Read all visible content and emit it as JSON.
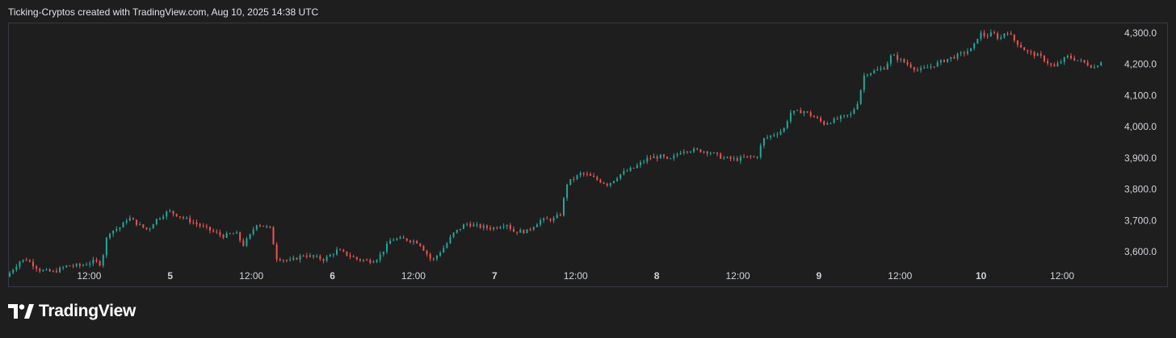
{
  "header": {
    "caption": "Ticking-Cryptos created with TradingView.com, Aug 10, 2025 14:38 UTC"
  },
  "brand": {
    "name": "TradingView"
  },
  "colors": {
    "up": "#26a69a",
    "down": "#ef5350",
    "background": "#1e1e1e",
    "border": "#363a45",
    "text": "#d1d4dc"
  },
  "chart_data": {
    "type": "candlestick",
    "price_axis": {
      "position": "right",
      "ylim": [
        3500,
        4330
      ],
      "ticks": [
        3600,
        3700,
        3800,
        3900,
        4000,
        4100,
        4200,
        4300
      ],
      "tick_labels": [
        "3,600.0",
        "3,700.0",
        "3,800.0",
        "3,900.0",
        "4,000.0",
        "4,100.0",
        "4,200.0",
        "4,300.0"
      ]
    },
    "time_axis": {
      "range_hours": [
        0,
        164
      ],
      "ticks": [
        {
          "hour": 12,
          "label": "12:00",
          "bold": false
        },
        {
          "hour": 24,
          "label": "5",
          "bold": true
        },
        {
          "hour": 36,
          "label": "12:00",
          "bold": false
        },
        {
          "hour": 48,
          "label": "6",
          "bold": true
        },
        {
          "hour": 60,
          "label": "12:00",
          "bold": false
        },
        {
          "hour": 72,
          "label": "7",
          "bold": true
        },
        {
          "hour": 84,
          "label": "12:00",
          "bold": false
        },
        {
          "hour": 96,
          "label": "8",
          "bold": true
        },
        {
          "hour": 108,
          "label": "12:00",
          "bold": false
        },
        {
          "hour": 120,
          "label": "9",
          "bold": true
        },
        {
          "hour": 132,
          "label": "12:00",
          "bold": false
        },
        {
          "hour": 144,
          "label": "10",
          "bold": true
        },
        {
          "hour": 156,
          "label": "12:00",
          "bold": false
        }
      ]
    },
    "series_path": [
      [
        0,
        3520
      ],
      [
        2,
        3570
      ],
      [
        3,
        3575
      ],
      [
        5,
        3540
      ],
      [
        7,
        3535
      ],
      [
        9,
        3555
      ],
      [
        11,
        3555
      ],
      [
        13,
        3570
      ],
      [
        14,
        3560
      ],
      [
        15,
        3660
      ],
      [
        17,
        3680
      ],
      [
        18,
        3710
      ],
      [
        20,
        3680
      ],
      [
        21,
        3670
      ],
      [
        22,
        3700
      ],
      [
        24,
        3730
      ],
      [
        26,
        3710
      ],
      [
        28,
        3690
      ],
      [
        30,
        3670
      ],
      [
        32,
        3650
      ],
      [
        34,
        3660
      ],
      [
        35,
        3620
      ],
      [
        36,
        3650
      ],
      [
        37,
        3690
      ],
      [
        39,
        3675
      ],
      [
        40,
        3580
      ],
      [
        42,
        3570
      ],
      [
        44,
        3590
      ],
      [
        46,
        3580
      ],
      [
        47,
        3575
      ],
      [
        48,
        3590
      ],
      [
        49,
        3605
      ],
      [
        50,
        3595
      ],
      [
        52,
        3575
      ],
      [
        54,
        3570
      ],
      [
        55,
        3580
      ],
      [
        57,
        3640
      ],
      [
        59,
        3640
      ],
      [
        61,
        3630
      ],
      [
        62,
        3600
      ],
      [
        63,
        3570
      ],
      [
        65,
        3620
      ],
      [
        66,
        3655
      ],
      [
        68,
        3690
      ],
      [
        70,
        3680
      ],
      [
        72,
        3675
      ],
      [
        74,
        3690
      ],
      [
        75,
        3665
      ],
      [
        77,
        3665
      ],
      [
        79,
        3700
      ],
      [
        81,
        3705
      ],
      [
        82,
        3720
      ],
      [
        83,
        3820
      ],
      [
        85,
        3850
      ],
      [
        86,
        3845
      ],
      [
        88,
        3825
      ],
      [
        89,
        3815
      ],
      [
        91,
        3850
      ],
      [
        93,
        3870
      ],
      [
        95,
        3900
      ],
      [
        97,
        3905
      ],
      [
        98,
        3890
      ],
      [
        100,
        3925
      ],
      [
        102,
        3925
      ],
      [
        104,
        3920
      ],
      [
        105,
        3910
      ],
      [
        106,
        3900
      ],
      [
        108,
        3895
      ],
      [
        110,
        3905
      ],
      [
        111,
        3900
      ],
      [
        112,
        3960
      ],
      [
        114,
        3980
      ],
      [
        115,
        3990
      ],
      [
        116,
        4045
      ],
      [
        118,
        4050
      ],
      [
        120,
        4025
      ],
      [
        121,
        4010
      ],
      [
        123,
        4025
      ],
      [
        125,
        4040
      ],
      [
        126,
        4080
      ],
      [
        127,
        4170
      ],
      [
        128,
        4175
      ],
      [
        130,
        4190
      ],
      [
        131,
        4230
      ],
      [
        133,
        4205
      ],
      [
        135,
        4180
      ],
      [
        137,
        4195
      ],
      [
        139,
        4215
      ],
      [
        141,
        4230
      ],
      [
        143,
        4250
      ],
      [
        144,
        4300
      ],
      [
        145,
        4290
      ],
      [
        146,
        4300
      ],
      [
        147,
        4280
      ],
      [
        148,
        4310
      ],
      [
        149,
        4280
      ],
      [
        151,
        4240
      ],
      [
        153,
        4225
      ],
      [
        155,
        4190
      ],
      [
        157,
        4225
      ],
      [
        159,
        4210
      ],
      [
        161,
        4190
      ],
      [
        162,
        4210
      ]
    ],
    "candles_shown": 328
  }
}
